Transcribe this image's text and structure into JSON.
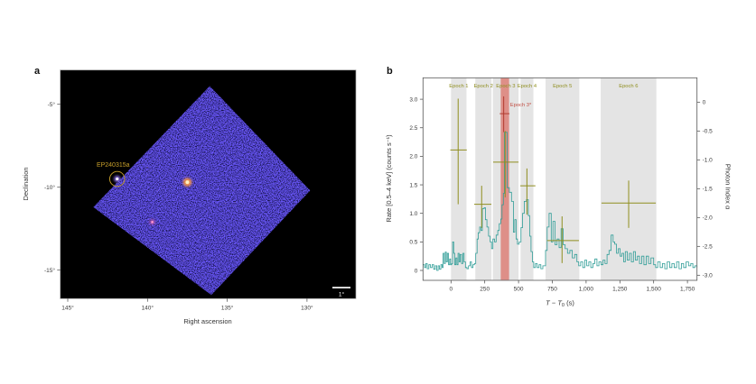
{
  "figure_title": "",
  "annotation_colors": {
    "gold": "#c8a02c",
    "teal": "#2f9d97",
    "olive": "#8f8e1f",
    "red_cross": "#b03a30",
    "red_band": "#dd8078",
    "gray_band": "#e4e4e4"
  },
  "chart_data": [
    {
      "panel": "a",
      "panel_letter": "a",
      "type": "heatmap",
      "description": "Wide-field X-ray sky image with diamond field of view and detected transient",
      "xlabel": "Right ascension",
      "ylabel": "Declination",
      "x_ticks": [
        {
          "value": 145,
          "label": "145°"
        },
        {
          "value": 140,
          "label": "140°"
        },
        {
          "value": 135,
          "label": "135°"
        },
        {
          "value": 130,
          "label": "130°"
        }
      ],
      "y_ticks": [
        {
          "value": -5,
          "label": "-5°"
        },
        {
          "value": -10,
          "label": "-10°"
        },
        {
          "value": -15,
          "label": "-15°"
        }
      ],
      "fov_corners_deg": [
        [
          136.1,
          -3.9
        ],
        [
          129.8,
          -10.2
        ],
        [
          136.0,
          -16.5
        ],
        [
          143.4,
          -11.2
        ]
      ],
      "sources": [
        {
          "label": "EP240315a",
          "ra": 141.9,
          "dec": -9.5,
          "circled": true,
          "core": "#ffffff",
          "glow": "#8468e0",
          "size": 1.6
        },
        {
          "label": "",
          "ra": 137.5,
          "dec": -9.7,
          "circled": false,
          "core": "#fff0c2",
          "glow": "#ff9a3c",
          "size": 2.0
        },
        {
          "label": "",
          "ra": 139.7,
          "dec": -12.1,
          "circled": false,
          "core": "#ff9ad5",
          "glow": "#b050a8",
          "size": 1.3
        }
      ],
      "scalebar": {
        "label": "1°",
        "length_deg": 1
      }
    },
    {
      "panel": "b",
      "panel_letter": "b",
      "type": "line",
      "xlabel": "T − T₀ (s)",
      "xlabel_parts": [
        "T",
        " − ",
        "T",
        "0",
        " (s)"
      ],
      "ylabel_left": "Rate [0.5–4 keV] (counts s⁻¹)",
      "ylabel_right": "Photon Index α",
      "x_range": [
        -207,
        1821
      ],
      "x_ticks": [
        {
          "t": 0,
          "label": "0"
        },
        {
          "t": 250,
          "label": "250"
        },
        {
          "t": 500,
          "label": "500"
        },
        {
          "t": 750,
          "label": "750"
        },
        {
          "t": 1000,
          "label": "1,000"
        },
        {
          "t": 1250,
          "label": "1,250"
        },
        {
          "t": 1500,
          "label": "1,500"
        },
        {
          "t": 1750,
          "label": "1,750"
        }
      ],
      "y_left_range": [
        -0.18,
        3.38
      ],
      "y_left_ticks": [
        {
          "r": 3.0,
          "label": "3.0"
        },
        {
          "r": 2.5,
          "label": "2.5"
        },
        {
          "r": 2.0,
          "label": "2.0"
        },
        {
          "r": 1.5,
          "label": "1.5"
        },
        {
          "r": 1.0,
          "label": "1.0"
        },
        {
          "r": 0.5,
          "label": "0.5"
        },
        {
          "r": 0,
          "label": "0"
        }
      ],
      "y_right_range": [
        0.43,
        -3.09
      ],
      "y_right_ticks": [
        {
          "a": 0,
          "label": "0"
        },
        {
          "a": -0.5,
          "label": "-0.5"
        },
        {
          "a": -1.0,
          "label": "-1.0"
        },
        {
          "a": -1.5,
          "label": "-1.5"
        },
        {
          "a": -2.0,
          "label": "-2.0"
        },
        {
          "a": -2.5,
          "label": "-2.5"
        },
        {
          "a": -3.0,
          "label": "-3.0"
        }
      ],
      "epochs": [
        {
          "label": "Epoch 1",
          "band": [
            0,
            115
          ],
          "t": 53,
          "t_bar": [
            -5,
            117
          ],
          "alpha": -0.83,
          "alpha_bar": [
            0.06,
            -1.77
          ]
        },
        {
          "label": "Epoch 2",
          "band": [
            180,
            300
          ],
          "t": 227,
          "t_bar": [
            172,
            299
          ],
          "alpha": -1.77,
          "alpha_bar": [
            -1.45,
            -2.18
          ]
        },
        {
          "label": "Epoch 3",
          "band": [
            310,
            500
          ],
          "t": 401,
          "t_bar": [
            312,
            500
          ],
          "alpha": -1.04,
          "alpha_bar": [
            -0.5,
            -1.65
          ]
        },
        {
          "label": "Epoch 4",
          "band": [
            515,
            610
          ],
          "t": 562,
          "t_bar": [
            513,
            625
          ],
          "alpha": -1.45,
          "alpha_bar": [
            -1.15,
            -1.95
          ]
        },
        {
          "label": "Epoch 5",
          "band": [
            700,
            950
          ],
          "t": 822,
          "t_bar": [
            711,
            947
          ],
          "alpha": -2.4,
          "alpha_bar": [
            -1.98,
            -2.79
          ]
        },
        {
          "label": "Epoch 6",
          "band": [
            1108,
            1520
          ],
          "t": 1315,
          "t_bar": [
            1114,
            1516
          ],
          "alpha": -1.75,
          "alpha_bar": [
            -1.36,
            -2.18
          ]
        }
      ],
      "special_epoch": {
        "label": "Epoch 3*",
        "band": [
          368,
          430
        ],
        "t": 390,
        "t_bar": [
          361,
          433
        ],
        "alpha": -0.2,
        "alpha_bar": [
          0.1,
          -0.52
        ]
      },
      "lightcurve_steps": [
        [
          -207,
          0.1
        ],
        [
          -196,
          0.05
        ],
        [
          -186,
          0.12
        ],
        [
          -176,
          0.03
        ],
        [
          -164,
          0.1
        ],
        [
          -152,
          0.05
        ],
        [
          -140,
          0.1
        ],
        [
          -128,
          0.02
        ],
        [
          -116,
          0.08
        ],
        [
          -105,
          0
        ],
        [
          -95,
          0.08
        ],
        [
          -85,
          0.02
        ],
        [
          -75,
          0.1
        ],
        [
          -65,
          0.05
        ],
        [
          -58,
          0.3
        ],
        [
          -50,
          0.12
        ],
        [
          -42,
          0.32
        ],
        [
          -35,
          0.15
        ],
        [
          -27,
          0.3
        ],
        [
          -18,
          0.1
        ],
        [
          -10,
          0.2
        ],
        [
          -3,
          0.1
        ],
        [
          5,
          0.12
        ],
        [
          12,
          0.5
        ],
        [
          20,
          0.3
        ],
        [
          28,
          0.1
        ],
        [
          36,
          0.22
        ],
        [
          44,
          0.1
        ],
        [
          52,
          0.3
        ],
        [
          60,
          0.15
        ],
        [
          68,
          0.28
        ],
        [
          78,
          0.12
        ],
        [
          88,
          0.3
        ],
        [
          97,
          0.15
        ],
        [
          107,
          0.05
        ],
        [
          118,
          0.03
        ],
        [
          130,
          0.08
        ],
        [
          142,
          0.15
        ],
        [
          152,
          0.05
        ],
        [
          163,
          0.1
        ],
        [
          173,
          0.12
        ],
        [
          183,
          0.3
        ],
        [
          193,
          0.55
        ],
        [
          202,
          0.66
        ],
        [
          212,
          0.76
        ],
        [
          222,
          0.7
        ],
        [
          232,
          1.08
        ],
        [
          245,
          1.1
        ],
        [
          255,
          0.89
        ],
        [
          266,
          0.76
        ],
        [
          278,
          0.6
        ],
        [
          290,
          0.5
        ],
        [
          300,
          0.38
        ],
        [
          310,
          0.55
        ],
        [
          322,
          0.5
        ],
        [
          334,
          0.62
        ],
        [
          346,
          0.7
        ],
        [
          357,
          0.82
        ],
        [
          368,
          0.9
        ],
        [
          378,
          1.15
        ],
        [
          388,
          1.35
        ],
        [
          396,
          2.42
        ],
        [
          415,
          1.45
        ],
        [
          432,
          1.37
        ],
        [
          448,
          1.21
        ],
        [
          462,
          0.67
        ],
        [
          472,
          0.89
        ],
        [
          482,
          0.55
        ],
        [
          492,
          0.46
        ],
        [
          505,
          0.5
        ],
        [
          518,
          0.75
        ],
        [
          530,
          1
        ],
        [
          542,
          1.21
        ],
        [
          558,
          1.24
        ],
        [
          572,
          0.96
        ],
        [
          582,
          0.6
        ],
        [
          592,
          0.33
        ],
        [
          602,
          0.15
        ],
        [
          612,
          0.05
        ],
        [
          625,
          0.12
        ],
        [
          638,
          0.05
        ],
        [
          652,
          0.1
        ],
        [
          665,
          0.03
        ],
        [
          680,
          0.08
        ],
        [
          700,
          0.35
        ],
        [
          712,
          0.76
        ],
        [
          726,
          1
        ],
        [
          742,
          0.5
        ],
        [
          755,
          0.86
        ],
        [
          770,
          0.45
        ],
        [
          785,
          0.55
        ],
        [
          800,
          0.4
        ],
        [
          815,
          0.73
        ],
        [
          830,
          0.45
        ],
        [
          845,
          0.38
        ],
        [
          862,
          0.3
        ],
        [
          880,
          0.35
        ],
        [
          898,
          0.22
        ],
        [
          915,
          0.28
        ],
        [
          932,
          0.15
        ],
        [
          945,
          0.08
        ],
        [
          960,
          0.15
        ],
        [
          975,
          0.05
        ],
        [
          990,
          0.18
        ],
        [
          1005,
          0.08
        ],
        [
          1020,
          0.15
        ],
        [
          1035,
          0.05
        ],
        [
          1050,
          0.12
        ],
        [
          1065,
          0.2
        ],
        [
          1080,
          0.08
        ],
        [
          1095,
          0.15
        ],
        [
          1110,
          0.1
        ],
        [
          1125,
          0.18
        ],
        [
          1140,
          0.12
        ],
        [
          1155,
          0.28
        ],
        [
          1170,
          0.35
        ],
        [
          1185,
          0.62
        ],
        [
          1200,
          0.5
        ],
        [
          1212,
          0.46
        ],
        [
          1225,
          0.3
        ],
        [
          1238,
          0.38
        ],
        [
          1252,
          0.25
        ],
        [
          1265,
          0.3
        ],
        [
          1278,
          0.15
        ],
        [
          1290,
          0.33
        ],
        [
          1305,
          0.18
        ],
        [
          1320,
          0.3
        ],
        [
          1335,
          0.15
        ],
        [
          1350,
          0.33
        ],
        [
          1365,
          0.18
        ],
        [
          1380,
          0.25
        ],
        [
          1395,
          0.12
        ],
        [
          1412,
          0.25
        ],
        [
          1428,
          0.1
        ],
        [
          1445,
          0.25
        ],
        [
          1462,
          0.12
        ],
        [
          1480,
          0.22
        ],
        [
          1500,
          0.1
        ],
        [
          1515,
          0.05
        ],
        [
          1530,
          0.15
        ],
        [
          1548,
          0.05
        ],
        [
          1565,
          0.12
        ],
        [
          1582,
          0.03
        ],
        [
          1600,
          0.15
        ],
        [
          1618,
          0.05
        ],
        [
          1635,
          0.12
        ],
        [
          1652,
          0.05
        ],
        [
          1670,
          0.15
        ],
        [
          1688,
          0.03
        ],
        [
          1705,
          0.12
        ],
        [
          1722,
          0.05
        ],
        [
          1740,
          0.15
        ],
        [
          1758,
          0.08
        ],
        [
          1775,
          0.12
        ],
        [
          1790,
          0.05
        ],
        [
          1805,
          0.08
        ],
        [
          1820,
          0.05
        ]
      ]
    }
  ]
}
